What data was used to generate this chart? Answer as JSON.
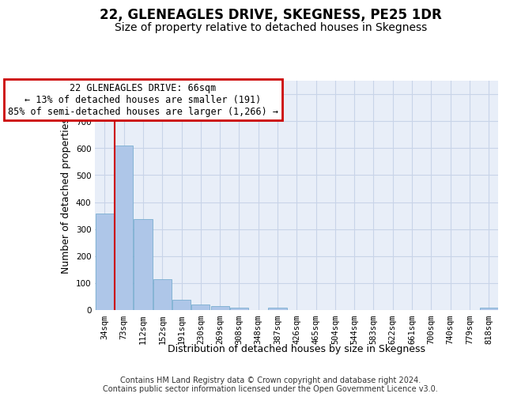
{
  "title": "22, GLENEAGLES DRIVE, SKEGNESS, PE25 1DR",
  "subtitle": "Size of property relative to detached houses in Skegness",
  "xlabel": "Distribution of detached houses by size in Skegness",
  "ylabel": "Number of detached properties",
  "footer_line1": "Contains HM Land Registry data © Crown copyright and database right 2024.",
  "footer_line2": "Contains public sector information licensed under the Open Government Licence v3.0.",
  "categories": [
    "34sqm",
    "73sqm",
    "112sqm",
    "152sqm",
    "191sqm",
    "230sqm",
    "269sqm",
    "308sqm",
    "348sqm",
    "387sqm",
    "426sqm",
    "465sqm",
    "504sqm",
    "544sqm",
    "583sqm",
    "622sqm",
    "661sqm",
    "700sqm",
    "740sqm",
    "779sqm",
    "818sqm"
  ],
  "values": [
    358,
    611,
    338,
    115,
    38,
    20,
    16,
    10,
    0,
    10,
    0,
    0,
    0,
    0,
    0,
    0,
    0,
    0,
    0,
    0,
    8
  ],
  "bar_color": "#aec6e8",
  "bar_edge_color": "#7aaed0",
  "annotation_text": "22 GLENEAGLES DRIVE: 66sqm\n← 13% of detached houses are smaller (191)\n85% of semi-detached houses are larger (1,266) →",
  "annotation_box_facecolor": "#ffffff",
  "annotation_box_edgecolor": "#cc0000",
  "vline_color": "#cc0000",
  "vline_x": 0.5,
  "ylim": [
    0,
    850
  ],
  "yticks": [
    0,
    100,
    200,
    300,
    400,
    500,
    600,
    700,
    800
  ],
  "grid_color": "#c8d4e8",
  "bg_color": "#e8eef8",
  "title_fontsize": 12,
  "subtitle_fontsize": 10,
  "tick_fontsize": 7.5,
  "label_fontsize": 9,
  "footer_fontsize": 7
}
